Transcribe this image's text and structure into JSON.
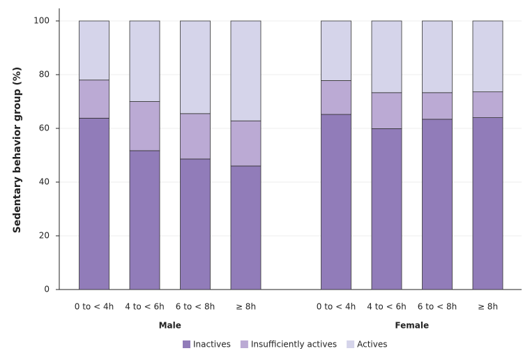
{
  "chart_data": {
    "type": "stacked-bar",
    "y_label": "Sedentary behavior group (%)",
    "groups": [
      "Male",
      "Female"
    ],
    "categories": [
      "0 to < 4h",
      "4 to < 6h",
      "6 to < 8h",
      "≥ 8h",
      "0 to < 4h",
      "4 to < 6h",
      "6 to < 8h",
      "≥ 8h"
    ],
    "series": [
      {
        "name": "Inactives",
        "color": "#917cb9",
        "values": [
          63.8,
          51.7,
          48.6,
          46.0,
          65.2,
          59.9,
          63.4,
          64.0
        ]
      },
      {
        "name": "Insufficiently actives",
        "color": "#bbaad4",
        "values": [
          14.2,
          18.3,
          16.9,
          16.8,
          12.6,
          13.4,
          9.9,
          9.6
        ]
      },
      {
        "name": "Actives",
        "color": "#d5d4ea",
        "values": [
          22.0,
          30.0,
          34.5,
          37.2,
          22.2,
          26.7,
          26.7,
          26.4
        ]
      }
    ],
    "ylim": [
      0,
      100
    ],
    "yticks": [
      0,
      20,
      40,
      60,
      80,
      100
    ],
    "grid": true,
    "legend": "bottom"
  }
}
